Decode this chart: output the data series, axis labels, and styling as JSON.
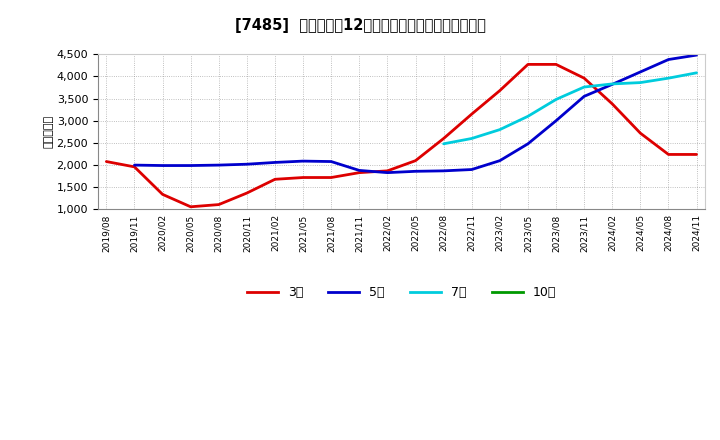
{
  "title": "[7485]  当期純利益12か月移動合計の標準偏差の推移",
  "ylabel": "（百万円）",
  "ylim": [
    1000,
    4500
  ],
  "yticks": [
    1000,
    1500,
    2000,
    2500,
    3000,
    3500,
    4000,
    4500
  ],
  "background_color": "#ffffff",
  "plot_bg_color": "#ffffff",
  "grid_color": "#888888",
  "series_order": [
    "3年",
    "5年",
    "7年",
    "10年"
  ],
  "series": {
    "3年": {
      "color": "#dd0000",
      "data": [
        [
          "2019/08",
          2080
        ],
        [
          "2019/11",
          1960
        ],
        [
          "2020/02",
          1340
        ],
        [
          "2020/05",
          1060
        ],
        [
          "2020/08",
          1110
        ],
        [
          "2020/11",
          1370
        ],
        [
          "2021/02",
          1680
        ],
        [
          "2021/05",
          1720
        ],
        [
          "2021/08",
          1720
        ],
        [
          "2021/11",
          1830
        ],
        [
          "2022/02",
          1870
        ],
        [
          "2022/05",
          2100
        ],
        [
          "2022/08",
          2600
        ],
        [
          "2022/11",
          3150
        ],
        [
          "2023/02",
          3680
        ],
        [
          "2023/05",
          4270
        ],
        [
          "2023/08",
          4270
        ],
        [
          "2023/11",
          3960
        ],
        [
          "2024/02",
          3380
        ],
        [
          "2024/05",
          2720
        ],
        [
          "2024/08",
          2240
        ],
        [
          "2024/11",
          2240
        ]
      ]
    },
    "5年": {
      "color": "#0000cc",
      "data": [
        [
          "2019/08",
          null
        ],
        [
          "2019/11",
          2000
        ],
        [
          "2020/02",
          1990
        ],
        [
          "2020/05",
          1990
        ],
        [
          "2020/08",
          2000
        ],
        [
          "2020/11",
          2020
        ],
        [
          "2021/02",
          2060
        ],
        [
          "2021/05",
          2090
        ],
        [
          "2021/08",
          2080
        ],
        [
          "2021/11",
          1880
        ],
        [
          "2022/02",
          1830
        ],
        [
          "2022/05",
          1860
        ],
        [
          "2022/08",
          1870
        ],
        [
          "2022/11",
          1900
        ],
        [
          "2023/02",
          2100
        ],
        [
          "2023/05",
          2480
        ],
        [
          "2023/08",
          3000
        ],
        [
          "2023/11",
          3550
        ],
        [
          "2024/02",
          3820
        ],
        [
          "2024/05",
          4100
        ],
        [
          "2024/08",
          4380
        ],
        [
          "2024/11",
          4480
        ]
      ]
    },
    "7年": {
      "color": "#00ccdd",
      "data": [
        [
          "2019/08",
          null
        ],
        [
          "2019/11",
          null
        ],
        [
          "2020/02",
          null
        ],
        [
          "2020/05",
          null
        ],
        [
          "2020/08",
          null
        ],
        [
          "2020/11",
          null
        ],
        [
          "2021/02",
          null
        ],
        [
          "2021/05",
          null
        ],
        [
          "2021/08",
          null
        ],
        [
          "2021/11",
          null
        ],
        [
          "2022/02",
          null
        ],
        [
          "2022/05",
          null
        ],
        [
          "2022/08",
          2480
        ],
        [
          "2022/11",
          2600
        ],
        [
          "2023/02",
          2800
        ],
        [
          "2023/05",
          3100
        ],
        [
          "2023/08",
          3480
        ],
        [
          "2023/11",
          3760
        ],
        [
          "2024/02",
          3830
        ],
        [
          "2024/05",
          3860
        ],
        [
          "2024/08",
          3960
        ],
        [
          "2024/11",
          4080
        ]
      ]
    },
    "10年": {
      "color": "#009900",
      "data": [
        [
          "2019/08",
          null
        ],
        [
          "2019/11",
          null
        ],
        [
          "2020/02",
          null
        ],
        [
          "2020/05",
          null
        ],
        [
          "2020/08",
          null
        ],
        [
          "2020/11",
          null
        ],
        [
          "2021/02",
          null
        ],
        [
          "2021/05",
          null
        ],
        [
          "2021/08",
          null
        ],
        [
          "2021/11",
          null
        ],
        [
          "2022/02",
          null
        ],
        [
          "2022/05",
          null
        ],
        [
          "2022/08",
          null
        ],
        [
          "2022/11",
          null
        ],
        [
          "2023/02",
          null
        ],
        [
          "2023/05",
          null
        ],
        [
          "2023/08",
          null
        ],
        [
          "2023/11",
          null
        ],
        [
          "2024/02",
          null
        ],
        [
          "2024/05",
          null
        ],
        [
          "2024/08",
          null
        ],
        [
          "2024/11",
          null
        ]
      ]
    }
  },
  "xtick_labels": [
    "2019/08",
    "2019/11",
    "2020/02",
    "2020/05",
    "2020/08",
    "2020/11",
    "2021/02",
    "2021/05",
    "2021/08",
    "2021/11",
    "2022/02",
    "2022/05",
    "2022/08",
    "2022/11",
    "2023/02",
    "2023/05",
    "2023/08",
    "2023/11",
    "2024/02",
    "2024/05",
    "2024/08",
    "2024/11"
  ],
  "legend_labels": [
    "3年",
    "5年",
    "7年",
    "10年"
  ],
  "legend_colors": [
    "#dd0000",
    "#0000cc",
    "#00ccdd",
    "#009900"
  ]
}
